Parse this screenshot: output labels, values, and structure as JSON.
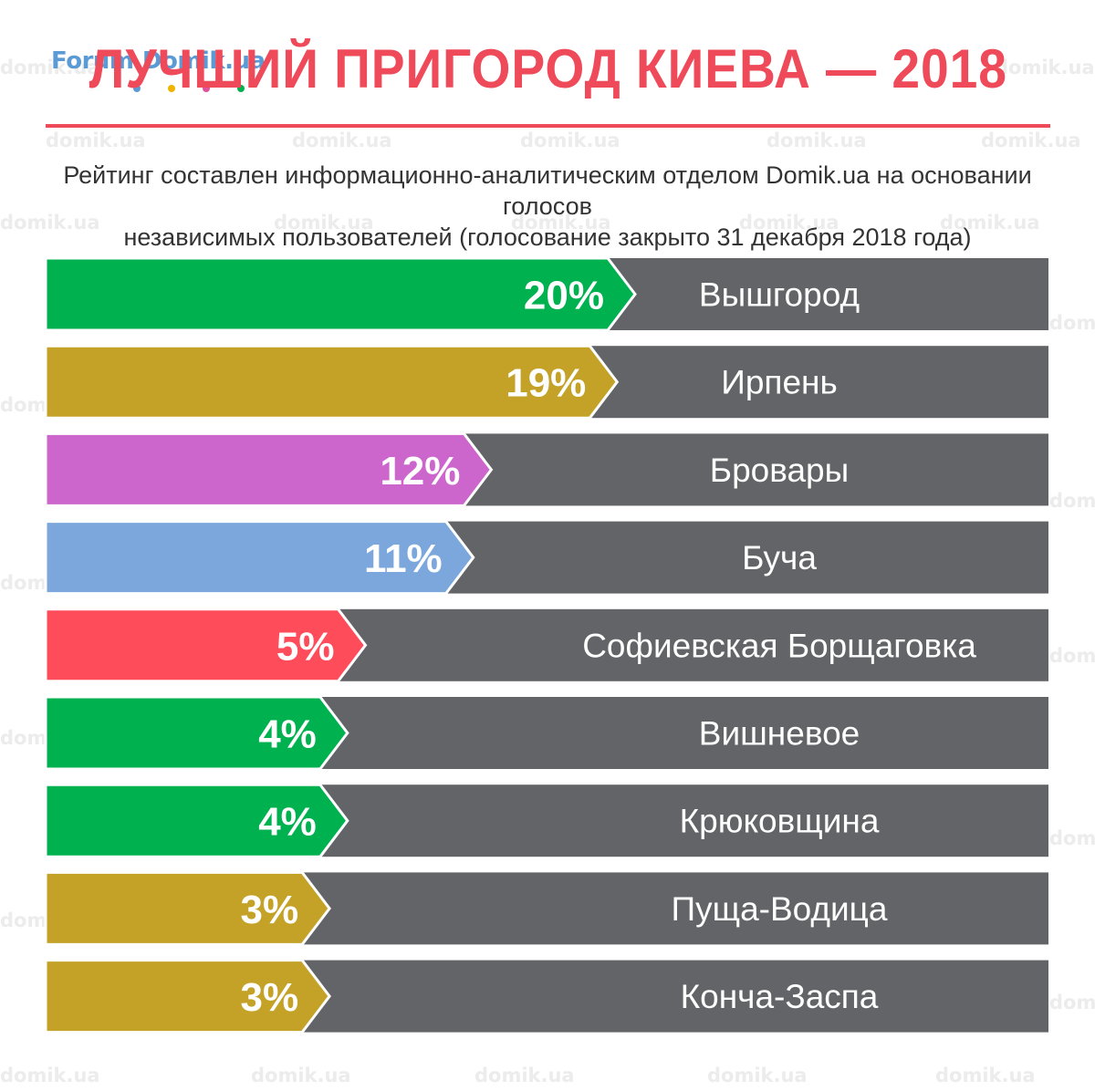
{
  "logo": {
    "text": "Forum.Domik.ua"
  },
  "watermark": {
    "text": "domik.ua"
  },
  "header": {
    "title": "ЛУЧШИЙ ПРИГОРОД КИЕВА — 2018",
    "subtitle_line1": "Рейтинг составлен информационно-аналитическим отделом Domik.ua на основании голосов",
    "subtitle_line2": "независимых пользователей (голосование закрыто  31 декабря 2018 года)"
  },
  "colors": {
    "title": "#ef4a59",
    "rule": "#ef4a59",
    "track": "#636467",
    "green": "#00b14f",
    "olive": "#c4a227",
    "violet": "#cc66cc",
    "blue": "#7ba7dc",
    "red": "#ff4c5b"
  },
  "chart_data": {
    "type": "bar",
    "orientation": "horizontal",
    "unit": "%",
    "categories": [
      "Вышгород",
      "Ирпень",
      "Бровары",
      "Буча",
      "Софиевская Борщаговка",
      "Вишневое",
      "Крюковщина",
      "Пуща-Водица",
      "Конча-Заспа"
    ],
    "values": [
      20,
      19,
      12,
      11,
      5,
      4,
      4,
      3,
      3
    ],
    "labels": [
      "20%",
      "19%",
      "12%",
      "11%",
      "5%",
      "4%",
      "4%",
      "3%",
      "3%"
    ],
    "bar_colors": [
      "#00b14f",
      "#c4a227",
      "#cc66cc",
      "#7ba7dc",
      "#ff4c5b",
      "#00b14f",
      "#00b14f",
      "#c4a227",
      "#c4a227"
    ],
    "title": "ЛУЧШИЙ ПРИГОРОД КИЕВА — 2018",
    "xlabel": "",
    "ylabel": "",
    "grid": false,
    "legend": "none"
  }
}
